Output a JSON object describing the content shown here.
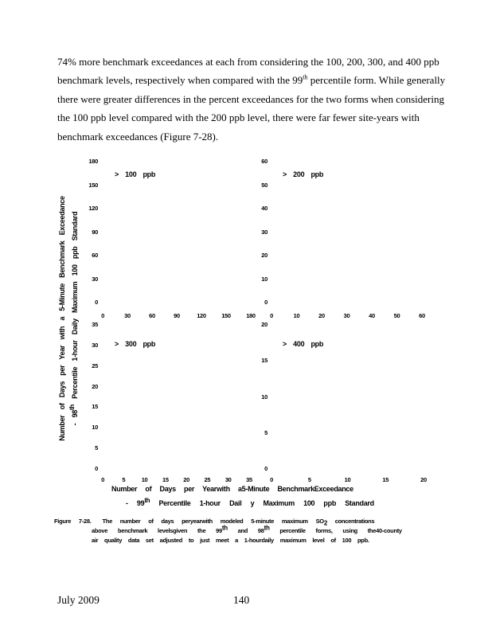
{
  "paragraph": {
    "line1": "74% more benchmark exceedances at each from considering the 100, 200, 300, and 400 ppb",
    "line2_pre": "benchmark levels, respectively when compared with the 99",
    "line2_sup": "th",
    "line2_post": " percentile form.  While generally",
    "line3": "there were greater differences in the percent exceedances for the two forms when considering",
    "line4": "the 100 ppb level compared with the 200 ppb level, there were far fewer site-years with",
    "line5": "benchmark exceedances (Figure 7-28)."
  },
  "figure": {
    "y_axis_title_line1": "Number of Days per Year with a 5-Minute Benchmark Exceedance",
    "y_axis_title_line2_pre": "- 98",
    "y_axis_title_line2_sup": "th",
    "y_axis_title_line2_post": " Percentile 1-hour Daily Maximum 100 ppb Standard",
    "x_axis_title_line1": "Number of Days per Yearwith a5-Minute BenchmarkExceedance",
    "x_axis_title_line2_pre": "- 99",
    "x_axis_title_line2_sup": "th",
    "x_axis_title_line2_post": " Percentile 1-hour Dail y Maximum 100 ppb Standard",
    "caption": {
      "label": "Figure 7-28.",
      "l1_pre": "The number of days peryearwith modeled 5-minute maximum SO",
      "l1_sub": "2",
      "l1_post": " concentrations",
      "l2_pre": "above benchmark levelsgiven the 99",
      "l2_sup1": "th",
      "l2_mid": " and 98",
      "l2_sup2": "th",
      "l2_post": " percentile forms, using the40-county",
      "l3": "air quality data set adjusted to just meet a 1-hourdaily maximum level of 100 ppb."
    }
  },
  "chart_data": [
    {
      "type": "scatter",
      "panel_label": "> 100 ppb",
      "xlim": [
        0,
        180
      ],
      "ylim": [
        0,
        180
      ],
      "xticks": [
        0,
        30,
        60,
        90,
        120,
        150,
        180
      ],
      "yticks": [
        180,
        150,
        120,
        90,
        60,
        30,
        0
      ],
      "xlabel": "Number of Days per Year with a 5-Minute Benchmark Exceedance - 99th Percentile 1-hour Daily Maximum 100 ppb Standard",
      "ylabel": "Number of Days per Year with a 5-Minute Benchmark Exceedance - 98th Percentile 1-hour Daily Maximum 100 ppb Standard",
      "grid": false,
      "points": []
    },
    {
      "type": "scatter",
      "panel_label": "> 200 ppb",
      "xlim": [
        0,
        60
      ],
      "ylim": [
        0,
        60
      ],
      "xticks": [
        0,
        10,
        20,
        30,
        40,
        50,
        60
      ],
      "yticks": [
        60,
        50,
        40,
        30,
        20,
        10,
        0
      ],
      "grid": false,
      "points": []
    },
    {
      "type": "scatter",
      "panel_label": "> 300 ppb",
      "xlim": [
        0,
        35
      ],
      "ylim": [
        0,
        35
      ],
      "xticks": [
        0,
        5,
        10,
        15,
        20,
        25,
        30,
        35
      ],
      "yticks": [
        35,
        30,
        25,
        20,
        15,
        10,
        5,
        0
      ],
      "grid": false,
      "points": []
    },
    {
      "type": "scatter",
      "panel_label": "> 400 ppb",
      "xlim": [
        0,
        20
      ],
      "ylim": [
        0,
        20
      ],
      "xticks": [
        0,
        5,
        10,
        15,
        20
      ],
      "yticks": [
        20,
        15,
        10,
        5,
        0
      ],
      "grid": false,
      "points": []
    }
  ],
  "footer": {
    "date": "July 2009",
    "page_number": "140"
  }
}
